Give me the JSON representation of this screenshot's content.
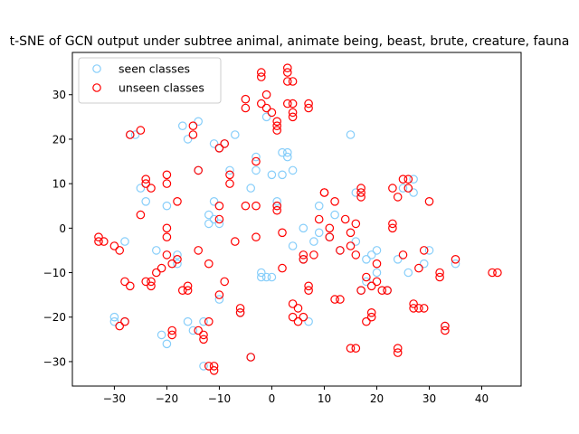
{
  "chart_data": {
    "type": "scatter",
    "title": "t-SNE of GCN output under subtree animal, animate being, beast, brute, creature, fauna",
    "xlabel": "",
    "ylabel": "",
    "xlim": [
      -38,
      47.5
    ],
    "ylim": [
      -35.5,
      39.5
    ],
    "xticks": [
      -30,
      -20,
      -10,
      0,
      10,
      20,
      30,
      40
    ],
    "yticks": [
      -30,
      -20,
      -10,
      0,
      10,
      20,
      30
    ],
    "grid": false,
    "legend_position": "upper-left",
    "series": [
      {
        "name": "seen classes",
        "color": "#87cefa",
        "marker": "open-circle",
        "points": [
          [
            -30,
            -20
          ],
          [
            -30,
            -21
          ],
          [
            -28,
            -21
          ],
          [
            -28,
            -3
          ],
          [
            -27,
            21
          ],
          [
            -26,
            21
          ],
          [
            -25,
            9
          ],
          [
            -24,
            6
          ],
          [
            -22,
            -5
          ],
          [
            -21,
            -24
          ],
          [
            -20,
            -26
          ],
          [
            -20,
            5
          ],
          [
            -18,
            -6
          ],
          [
            -18,
            -8
          ],
          [
            -17,
            23
          ],
          [
            -16,
            20
          ],
          [
            -16,
            -21
          ],
          [
            -15,
            -23
          ],
          [
            -14,
            24
          ],
          [
            -14,
            13
          ],
          [
            -13,
            -21
          ],
          [
            -13,
            -31
          ],
          [
            -12,
            3
          ],
          [
            -12,
            1
          ],
          [
            -11,
            19
          ],
          [
            -11,
            6
          ],
          [
            -11,
            2
          ],
          [
            -10,
            18
          ],
          [
            -10,
            1
          ],
          [
            -10,
            -16
          ],
          [
            -9,
            19
          ],
          [
            -8,
            13
          ],
          [
            -7,
            21
          ],
          [
            -6,
            -19
          ],
          [
            -4,
            9
          ],
          [
            -4,
            -29
          ],
          [
            -3,
            16
          ],
          [
            -3,
            13
          ],
          [
            -2,
            -10
          ],
          [
            -2,
            -11
          ],
          [
            -1,
            -11
          ],
          [
            -1,
            25
          ],
          [
            0,
            12
          ],
          [
            0,
            -11
          ],
          [
            1,
            5
          ],
          [
            1,
            6
          ],
          [
            2,
            12
          ],
          [
            2,
            17
          ],
          [
            3,
            17
          ],
          [
            3,
            16
          ],
          [
            4,
            -4
          ],
          [
            4,
            13
          ],
          [
            6,
            0
          ],
          [
            6,
            -7
          ],
          [
            7,
            -21
          ],
          [
            8,
            -3
          ],
          [
            9,
            -1
          ],
          [
            9,
            5
          ],
          [
            11,
            -2
          ],
          [
            12,
            3
          ],
          [
            13,
            -5
          ],
          [
            15,
            21
          ],
          [
            16,
            -3
          ],
          [
            16,
            8
          ],
          [
            17,
            -14
          ],
          [
            18,
            -7
          ],
          [
            18,
            -12
          ],
          [
            19,
            -6
          ],
          [
            20,
            -10
          ],
          [
            20,
            -5
          ],
          [
            22,
            -14
          ],
          [
            24,
            -7
          ],
          [
            25,
            9
          ],
          [
            26,
            -10
          ],
          [
            27,
            11
          ],
          [
            27,
            8
          ],
          [
            29,
            -8
          ],
          [
            30,
            -5
          ],
          [
            33,
            -22
          ],
          [
            35,
            -8
          ]
        ]
      },
      {
        "name": "unseen classes",
        "color": "#ff0000",
        "marker": "open-circle",
        "points": [
          [
            -33,
            -2
          ],
          [
            -33,
            -3
          ],
          [
            -32,
            -3
          ],
          [
            -30,
            -4
          ],
          [
            -29,
            -22
          ],
          [
            -29,
            -5
          ],
          [
            -28,
            -21
          ],
          [
            -28,
            -12
          ],
          [
            -27,
            -13
          ],
          [
            -27,
            21
          ],
          [
            -25,
            22
          ],
          [
            -25,
            3
          ],
          [
            -24,
            11
          ],
          [
            -24,
            10
          ],
          [
            -24,
            -12
          ],
          [
            -23,
            9
          ],
          [
            -23,
            -13
          ],
          [
            -23,
            -12
          ],
          [
            -22,
            -10
          ],
          [
            -21,
            -9
          ],
          [
            -20,
            12
          ],
          [
            -20,
            10
          ],
          [
            -20,
            0
          ],
          [
            -20,
            -2
          ],
          [
            -20,
            -6
          ],
          [
            -19,
            -24
          ],
          [
            -19,
            -23
          ],
          [
            -19,
            -8
          ],
          [
            -18,
            6
          ],
          [
            -18,
            -7
          ],
          [
            -17,
            -14
          ],
          [
            -16,
            -13
          ],
          [
            -16,
            -14
          ],
          [
            -15,
            23
          ],
          [
            -15,
            21
          ],
          [
            -14,
            13
          ],
          [
            -14,
            -5
          ],
          [
            -14,
            -23
          ],
          [
            -13,
            -24
          ],
          [
            -13,
            -25
          ],
          [
            -12,
            -21
          ],
          [
            -12,
            -8
          ],
          [
            -12,
            -31
          ],
          [
            -11,
            -32
          ],
          [
            -11,
            -31
          ],
          [
            -10,
            18
          ],
          [
            -10,
            5
          ],
          [
            -10,
            2
          ],
          [
            -10,
            -15
          ],
          [
            -9,
            -12
          ],
          [
            -9,
            19
          ],
          [
            -8,
            12
          ],
          [
            -8,
            10
          ],
          [
            -7,
            -3
          ],
          [
            -6,
            -18
          ],
          [
            -6,
            -19
          ],
          [
            -5,
            29
          ],
          [
            -5,
            27
          ],
          [
            -5,
            5
          ],
          [
            -4,
            -29
          ],
          [
            -3,
            -2
          ],
          [
            -3,
            5
          ],
          [
            -3,
            15
          ],
          [
            -2,
            35
          ],
          [
            -2,
            34
          ],
          [
            -2,
            28
          ],
          [
            -1,
            30
          ],
          [
            -1,
            27
          ],
          [
            0,
            26
          ],
          [
            1,
            24
          ],
          [
            1,
            23
          ],
          [
            1,
            22
          ],
          [
            1,
            5
          ],
          [
            1,
            4
          ],
          [
            2,
            -1
          ],
          [
            2,
            -9
          ],
          [
            3,
            28
          ],
          [
            3,
            36
          ],
          [
            3,
            35
          ],
          [
            3,
            33
          ],
          [
            4,
            33
          ],
          [
            4,
            28
          ],
          [
            4,
            26
          ],
          [
            4,
            25
          ],
          [
            4,
            -17
          ],
          [
            4,
            -20
          ],
          [
            5,
            -18
          ],
          [
            5,
            -21
          ],
          [
            6,
            -20
          ],
          [
            6,
            -6
          ],
          [
            6,
            -7
          ],
          [
            7,
            28
          ],
          [
            7,
            27
          ],
          [
            7,
            -13
          ],
          [
            7,
            -14
          ],
          [
            8,
            -6
          ],
          [
            9,
            2
          ],
          [
            10,
            8
          ],
          [
            10,
            8
          ],
          [
            11,
            0
          ],
          [
            11,
            -2
          ],
          [
            12,
            6
          ],
          [
            12,
            -16
          ],
          [
            13,
            -16
          ],
          [
            13,
            -5
          ],
          [
            14,
            2
          ],
          [
            15,
            -1
          ],
          [
            15,
            -4
          ],
          [
            15,
            -27
          ],
          [
            16,
            -27
          ],
          [
            16,
            1
          ],
          [
            16,
            -6
          ],
          [
            17,
            8
          ],
          [
            17,
            9
          ],
          [
            17,
            7
          ],
          [
            17,
            -14
          ],
          [
            18,
            -11
          ],
          [
            18,
            -21
          ],
          [
            19,
            -20
          ],
          [
            19,
            -19
          ],
          [
            19,
            -13
          ],
          [
            20,
            -8
          ],
          [
            20,
            -12
          ],
          [
            21,
            -14
          ],
          [
            22,
            -14
          ],
          [
            23,
            9
          ],
          [
            23,
            1
          ],
          [
            23,
            0
          ],
          [
            24,
            -27
          ],
          [
            24,
            -28
          ],
          [
            24,
            7
          ],
          [
            25,
            11
          ],
          [
            25,
            -6
          ],
          [
            26,
            11
          ],
          [
            26,
            9
          ],
          [
            27,
            -17
          ],
          [
            27,
            -18
          ],
          [
            28,
            -18
          ],
          [
            28,
            -9
          ],
          [
            29,
            -5
          ],
          [
            29,
            -18
          ],
          [
            30,
            6
          ],
          [
            32,
            -10
          ],
          [
            32,
            -11
          ],
          [
            33,
            -22
          ],
          [
            33,
            -23
          ],
          [
            35,
            -7
          ],
          [
            42,
            -10
          ],
          [
            43,
            -10
          ]
        ]
      }
    ]
  }
}
